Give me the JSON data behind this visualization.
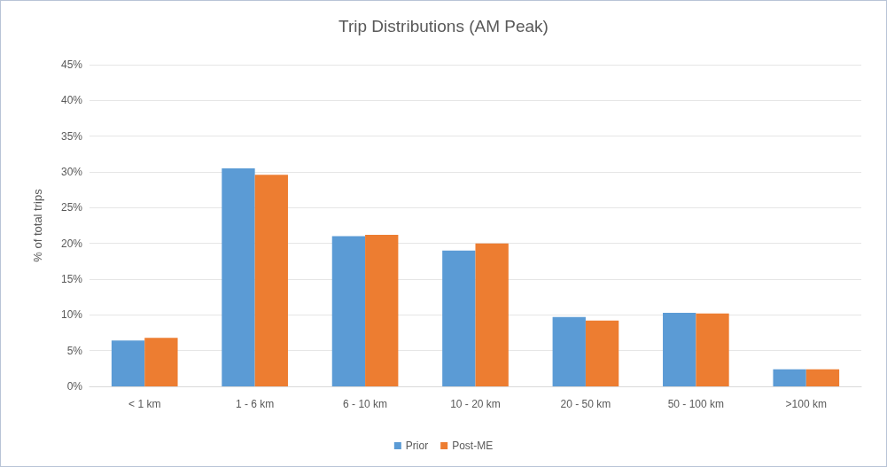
{
  "chart_data": {
    "type": "bar",
    "title": "Trip Distributions (AM Peak)",
    "ylabel": "% of total trips",
    "categories": [
      "< 1 km",
      "1 - 6 km",
      "6 - 10 km",
      "10 - 20 km",
      "20 - 50 km",
      "50 - 100 km",
      ">100 km"
    ],
    "series": [
      {
        "name": "Prior",
        "color": "#5b9bd5",
        "values": [
          6.4,
          30.5,
          21.0,
          19.0,
          9.7,
          10.3,
          2.4
        ]
      },
      {
        "name": "Post-ME",
        "color": "#ed7d31",
        "values": [
          6.8,
          29.6,
          21.2,
          20.0,
          9.2,
          10.2,
          2.4
        ]
      }
    ],
    "ylim": [
      0,
      45
    ],
    "yticks": [
      {
        "value": 0,
        "label": "0%"
      },
      {
        "value": 5,
        "label": "5%"
      },
      {
        "value": 10,
        "label": "10%"
      },
      {
        "value": 15,
        "label": "15%"
      },
      {
        "value": 20,
        "label": "20%"
      },
      {
        "value": 25,
        "label": "25%"
      },
      {
        "value": 30,
        "label": "30%"
      },
      {
        "value": 35,
        "label": "35%"
      },
      {
        "value": 40,
        "label": "40%"
      },
      {
        "value": 45,
        "label": "45%"
      }
    ],
    "grid": "y",
    "legend": "bottom"
  }
}
